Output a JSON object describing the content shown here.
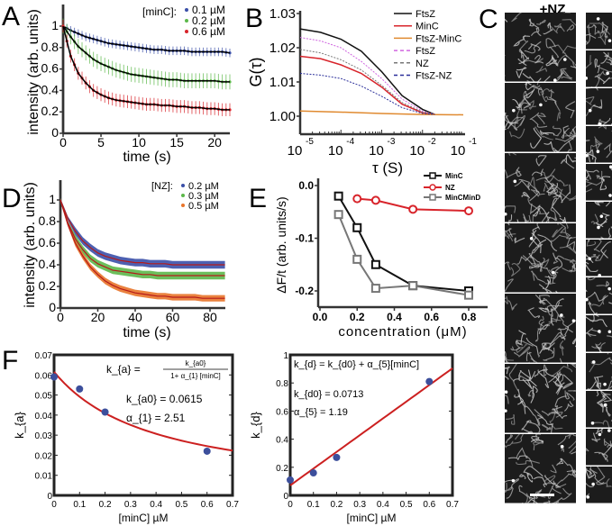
{
  "panel_labels": {
    "a": "A",
    "b": "B",
    "c": "C",
    "d": "D",
    "e": "E",
    "f": "F"
  },
  "colors": {
    "blue": "#3a4fa8",
    "green": "#5cb84a",
    "red": "#d8242b",
    "orange": "#e8742a",
    "black": "#111111",
    "magenta": "#d066e0",
    "grey": "#777777",
    "navy": "#2b2f9a",
    "orange_line": "#e08a30",
    "fit_red": "#cc2020",
    "point_blue": "#3c4f9c"
  },
  "panel_c": {
    "title": "+NZ",
    "left_frames": 7,
    "right_frames": 13
  },
  "chart_data": [
    {
      "id": "A",
      "type": "line",
      "title": "",
      "xlabel": "time (s)",
      "ylabel": "intensity (arb. units)",
      "xlim": [
        0,
        22
      ],
      "ylim": [
        0,
        1.15
      ],
      "xticks": [
        0,
        5,
        10,
        15,
        20
      ],
      "yticks": [
        0,
        0.2,
        0.4,
        0.6,
        0.8,
        1
      ],
      "ytick_labels": [
        "0",
        "0.2",
        "0.4",
        "0.6",
        "0.8",
        "1"
      ],
      "legend_title": "[minC]:",
      "legend": "top-right",
      "x": [
        0,
        1,
        2,
        3,
        4,
        5,
        6,
        7,
        8,
        9,
        10,
        11,
        12,
        13,
        14,
        15,
        16,
        17,
        18,
        19,
        20,
        21,
        22
      ],
      "series": [
        {
          "name": "0.1 µM",
          "color": "blue",
          "error": 0.04,
          "values": [
            1.0,
            0.96,
            0.93,
            0.9,
            0.88,
            0.86,
            0.84,
            0.83,
            0.82,
            0.81,
            0.8,
            0.79,
            0.78,
            0.78,
            0.77,
            0.77,
            0.77,
            0.76,
            0.76,
            0.76,
            0.76,
            0.76,
            0.75
          ]
        },
        {
          "name": "0.2 µM",
          "color": "green",
          "error": 0.07,
          "values": [
            1.0,
            0.9,
            0.81,
            0.75,
            0.69,
            0.65,
            0.62,
            0.59,
            0.57,
            0.55,
            0.54,
            0.53,
            0.52,
            0.51,
            0.5,
            0.5,
            0.49,
            0.49,
            0.49,
            0.49,
            0.49,
            0.48,
            0.48
          ]
        },
        {
          "name": "0.6 µM",
          "color": "red",
          "error": 0.06,
          "values": [
            1.0,
            0.72,
            0.56,
            0.47,
            0.4,
            0.36,
            0.33,
            0.31,
            0.3,
            0.29,
            0.28,
            0.27,
            0.27,
            0.26,
            0.26,
            0.25,
            0.25,
            0.24,
            0.24,
            0.23,
            0.23,
            0.22,
            0.22
          ]
        }
      ]
    },
    {
      "id": "B",
      "type": "line",
      "xlabel": "τ (S)",
      "ylabel": "G(τ)",
      "xscale": "log",
      "xlim_log10": [
        -5,
        -1
      ],
      "ylim": [
        0.9945,
        1.03
      ],
      "yticks": [
        1.0,
        1.01,
        1.02,
        1.03
      ],
      "ytick_labels": [
        "1.00",
        "1.01",
        "1.02",
        "1.03"
      ],
      "xticks_log10": [
        -5,
        -4,
        -3,
        -2,
        -1
      ],
      "xtick_labels": [
        "10",
        "10",
        "10",
        "10",
        "10"
      ],
      "xtick_exponents": [
        "-5",
        "-4",
        "-3",
        "-2",
        "-1"
      ],
      "legend": "top-right",
      "series": [
        {
          "name": "FtsZ",
          "color": "black",
          "dash": false,
          "log10_x": [
            -5,
            -4.5,
            -4,
            -3.5,
            -3,
            -2.5,
            -2,
            -1.7
          ],
          "values": [
            1.0255,
            1.0245,
            1.0225,
            1.019,
            1.013,
            1.006,
            1.002,
            1.0005
          ]
        },
        {
          "name": "MinC",
          "color": "red",
          "dash": false,
          "log10_x": [
            -5,
            -4.5,
            -4,
            -3.5,
            -3,
            -2.5,
            -2,
            -1.7
          ],
          "values": [
            1.0175,
            1.0168,
            1.015,
            1.0125,
            1.0085,
            1.0035,
            1.001,
            1.0005
          ]
        },
        {
          "name": "FtsZ-MinC",
          "color": "orange_line",
          "dash": false,
          "log10_x": [
            -5,
            -4,
            -3,
            -2,
            -1
          ],
          "values": [
            1.0015,
            1.0012,
            1.0008,
            1.0005,
            1.0004
          ]
        },
        {
          "name": "FtsZ",
          "color": "magenta",
          "dash": true,
          "log10_x": [
            -5,
            -4.5,
            -4,
            -3.5,
            -3,
            -2.5,
            -2,
            -1.7
          ],
          "values": [
            1.023,
            1.022,
            1.02,
            1.016,
            1.011,
            1.005,
            1.0015,
            1.0005
          ]
        },
        {
          "name": "NZ",
          "color": "grey",
          "dash": true,
          "log10_x": [
            -5,
            -4.5,
            -4,
            -3.5,
            -3,
            -2.5,
            -2,
            -1.7
          ],
          "values": [
            1.0195,
            1.0185,
            1.0165,
            1.0135,
            1.009,
            1.004,
            1.0012,
            1.0005
          ]
        },
        {
          "name": "FtsZ-NZ",
          "color": "navy",
          "dash": true,
          "log10_x": [
            -5,
            -4.5,
            -4,
            -3.5,
            -3,
            -2.5,
            -2,
            -1.7
          ],
          "values": [
            1.0125,
            1.012,
            1.011,
            1.0088,
            1.0058,
            1.0025,
            1.0008,
            1.0005
          ]
        }
      ]
    },
    {
      "id": "D",
      "type": "line",
      "xlabel": "time (s)",
      "ylabel": "intensity (arb. units)",
      "xlim": [
        0,
        88
      ],
      "ylim": [
        0,
        1.15
      ],
      "xticks": [
        0,
        20,
        40,
        60,
        80
      ],
      "yticks": [
        0,
        0.2,
        0.4,
        0.6,
        0.8,
        1
      ],
      "ytick_labels": [
        "0",
        "0.2",
        "0.4",
        "0.6",
        "0.8",
        "1"
      ],
      "legend_title": "[NZ]:",
      "legend": "top-right",
      "x": [
        0,
        4,
        8,
        12,
        16,
        20,
        24,
        28,
        32,
        36,
        40,
        44,
        48,
        52,
        56,
        60,
        64,
        68,
        72,
        76,
        80,
        84,
        88
      ],
      "series": [
        {
          "name": "0.2 µM",
          "color": "blue",
          "noise": 0.035,
          "values": [
            1.0,
            0.83,
            0.71,
            0.62,
            0.56,
            0.51,
            0.48,
            0.46,
            0.44,
            0.43,
            0.42,
            0.42,
            0.41,
            0.41,
            0.41,
            0.4,
            0.4,
            0.4,
            0.4,
            0.4,
            0.4,
            0.4,
            0.4
          ]
        },
        {
          "name": "0.3 µM",
          "color": "green",
          "noise": 0.035,
          "values": [
            1.0,
            0.79,
            0.64,
            0.54,
            0.46,
            0.41,
            0.38,
            0.35,
            0.34,
            0.33,
            0.32,
            0.31,
            0.31,
            0.3,
            0.3,
            0.3,
            0.3,
            0.3,
            0.3,
            0.3,
            0.3,
            0.3,
            0.3
          ]
        },
        {
          "name": "0.5 µM",
          "color": "orange",
          "noise": 0.03,
          "values": [
            1.0,
            0.77,
            0.6,
            0.48,
            0.38,
            0.31,
            0.25,
            0.21,
            0.18,
            0.16,
            0.14,
            0.13,
            0.12,
            0.11,
            0.11,
            0.1,
            0.1,
            0.1,
            0.1,
            0.09,
            0.09,
            0.09,
            0.09
          ]
        }
      ]
    },
    {
      "id": "E",
      "type": "line",
      "xlabel": "concentration (μM)",
      "ylabel": "ΔF/t (arb. units/s)",
      "xlim": [
        0,
        0.9
      ],
      "ylim": [
        -0.231,
        0
      ],
      "xticks": [
        0,
        0.2,
        0.4,
        0.6,
        0.8
      ],
      "xtick_labels": [
        "0.0",
        "0.2",
        "0.4",
        "0.6",
        "0.8"
      ],
      "yticks": [
        0,
        -0.1,
        -0.2
      ],
      "ytick_labels": [
        "0.0",
        "-0.1",
        "-0.2"
      ],
      "legend": "top-right",
      "series": [
        {
          "name": "MinC",
          "color": "black",
          "marker": "square",
          "x": [
            0.1,
            0.2,
            0.3,
            0.5,
            0.8
          ],
          "values": [
            -0.02,
            -0.08,
            -0.15,
            -0.19,
            -0.2
          ]
        },
        {
          "name": "NZ",
          "color": "red",
          "marker": "circle",
          "x": [
            0.2,
            0.3,
            0.5,
            0.8
          ],
          "values": [
            -0.025,
            -0.028,
            -0.045,
            -0.048
          ]
        },
        {
          "name": "MinCMinD",
          "color": "grey",
          "marker": "square",
          "x": [
            0.1,
            0.2,
            0.3,
            0.5,
            0.8
          ],
          "values": [
            -0.055,
            -0.14,
            -0.195,
            -0.19,
            -0.208
          ]
        }
      ]
    },
    {
      "id": "F1",
      "type": "scatter",
      "xlabel": "[minC]  µM",
      "ylabel": "k_{a}",
      "xlim": [
        0,
        0.7
      ],
      "ylim": [
        0,
        0.07
      ],
      "xticks": [
        0,
        0.1,
        0.2,
        0.3,
        0.4,
        0.5,
        0.6,
        0.7
      ],
      "xtick_labels": [
        "0",
        "0.1",
        "0.2",
        "0.3",
        "0.4",
        "0.5",
        "0.6",
        "0.7"
      ],
      "yticks": [
        0,
        0.01,
        0.02,
        0.03,
        0.04,
        0.05,
        0.06,
        0.07
      ],
      "ytick_labels": [
        "0",
        "0.01",
        "0.02",
        "0.03",
        "0.04",
        "0.05",
        "0.06",
        "0.07"
      ],
      "points": {
        "x": [
          0,
          0.1,
          0.2,
          0.6
        ],
        "y": [
          0.059,
          0.053,
          0.0415,
          0.022
        ]
      },
      "fit": {
        "model": "ka0/(1+a1*x)",
        "ka0": 0.0615,
        "a1": 2.51
      },
      "equation": {
        "lhs": "k_{a} = ",
        "num": "k_{a0}",
        "den": "1+ α_{1} [minC]"
      },
      "annotations": [
        "k_{a0} = 0.0615",
        "α_{1} = 2.51"
      ]
    },
    {
      "id": "F2",
      "type": "scatter",
      "xlabel": "[minC]  µM",
      "ylabel": "k_{d}",
      "xlim": [
        0,
        0.7
      ],
      "ylim": [
        0,
        1
      ],
      "xticks": [
        0,
        0.1,
        0.2,
        0.3,
        0.4,
        0.5,
        0.6,
        0.7
      ],
      "xtick_labels": [
        "0",
        "0.1",
        "0.2",
        "0.3",
        "0.4",
        "0.5",
        "0.6",
        "0.7"
      ],
      "yticks": [
        0,
        0.2,
        0.4,
        0.6,
        0.8,
        1
      ],
      "ytick_labels": [
        "0",
        "0.2",
        "0.4",
        "0.6",
        "0.8",
        "1"
      ],
      "points": {
        "x": [
          0,
          0.1,
          0.2,
          0.6
        ],
        "y": [
          0.11,
          0.16,
          0.27,
          0.81
        ]
      },
      "fit": {
        "model": "kd0+a5*x",
        "kd0": 0.0713,
        "a5": 1.19
      },
      "equation": {
        "text": "k_{d} = k_{d0} + α_{5}[minC]"
      },
      "annotations": [
        "k_{d0} = 0.0713",
        "α_{5} = 1.19"
      ]
    }
  ]
}
